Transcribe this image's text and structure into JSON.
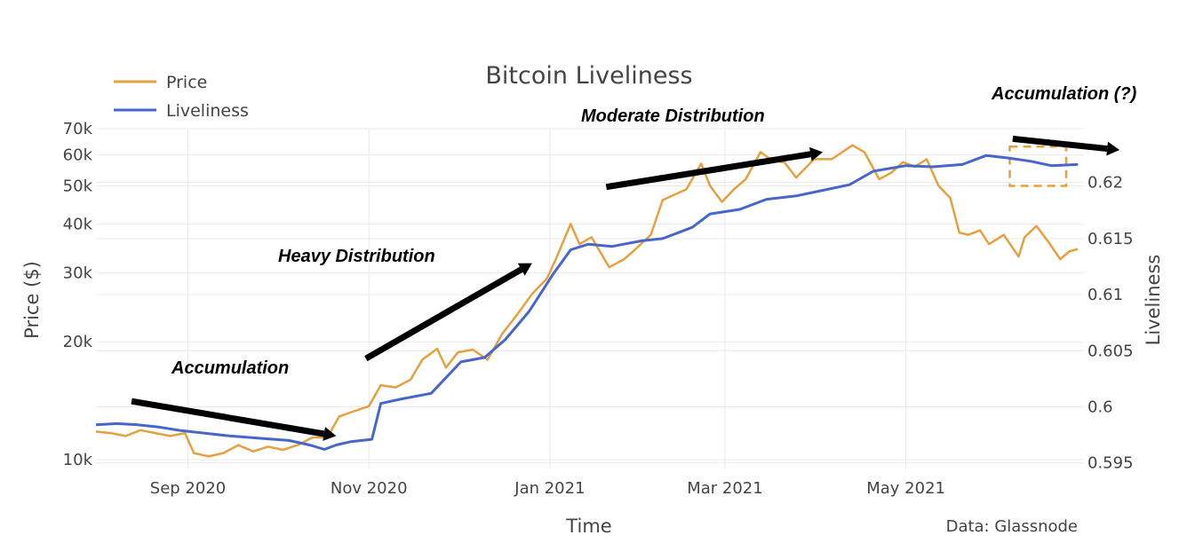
{
  "chart_data": {
    "type": "line",
    "title": "Bitcoin Liveliness",
    "xlabel": "Time",
    "ylabel_left": "Price ($)",
    "ylabel_right": "Liveliness",
    "source": "Data: Glassnode",
    "legend_position": "top-left",
    "x_ticks": [
      "Sep 2020",
      "Nov 2020",
      "Jan 2021",
      "Mar 2021",
      "May 2021"
    ],
    "y_left_ticks": [
      "10k",
      "20k",
      "30k",
      "40k",
      "50k",
      "60k",
      "70k"
    ],
    "y_left_scale": "log",
    "y_left_range": [
      9500,
      70000
    ],
    "y_right_ticks": [
      "0.595",
      "0.6",
      "0.605",
      "0.61",
      "0.615",
      "0.62"
    ],
    "y_right_range": [
      0.5945,
      0.6248
    ],
    "x_range": [
      "2020-08-01",
      "2021-06-30"
    ],
    "grid": true,
    "colors": {
      "Price": "#e5a13f",
      "Liveliness": "#4766c9",
      "box": "#e5a13f",
      "arrows": "#000000"
    },
    "series": [
      {
        "name": "Price",
        "axis": "left",
        "points": [
          [
            "2020-08-01",
            11800
          ],
          [
            "2020-08-06",
            11700
          ],
          [
            "2020-08-11",
            11500
          ],
          [
            "2020-08-16",
            11900
          ],
          [
            "2020-08-21",
            11700
          ],
          [
            "2020-08-26",
            11500
          ],
          [
            "2020-08-31",
            11700
          ],
          [
            "2020-09-03",
            10400
          ],
          [
            "2020-09-08",
            10200
          ],
          [
            "2020-09-13",
            10400
          ],
          [
            "2020-09-18",
            10900
          ],
          [
            "2020-09-23",
            10500
          ],
          [
            "2020-09-28",
            10800
          ],
          [
            "2020-10-03",
            10600
          ],
          [
            "2020-10-08",
            10900
          ],
          [
            "2020-10-13",
            11400
          ],
          [
            "2020-10-18",
            11400
          ],
          [
            "2020-10-22",
            12900
          ],
          [
            "2020-10-27",
            13300
          ],
          [
            "2020-11-01",
            13700
          ],
          [
            "2020-11-05",
            15500
          ],
          [
            "2020-11-10",
            15300
          ],
          [
            "2020-11-15",
            16000
          ],
          [
            "2020-11-19",
            18000
          ],
          [
            "2020-11-24",
            19200
          ],
          [
            "2020-11-27",
            17200
          ],
          [
            "2020-12-01",
            18800
          ],
          [
            "2020-12-06",
            19100
          ],
          [
            "2020-12-11",
            18000
          ],
          [
            "2020-12-16",
            21000
          ],
          [
            "2020-12-21",
            23500
          ],
          [
            "2020-12-26",
            26500
          ],
          [
            "2020-12-31",
            29000
          ],
          [
            "2021-01-03",
            32500
          ],
          [
            "2021-01-08",
            40000
          ],
          [
            "2021-01-11",
            35500
          ],
          [
            "2021-01-15",
            37000
          ],
          [
            "2021-01-21",
            31000
          ],
          [
            "2021-01-26",
            32500
          ],
          [
            "2021-01-29",
            34000
          ],
          [
            "2021-02-04",
            37500
          ],
          [
            "2021-02-08",
            46000
          ],
          [
            "2021-02-12",
            47500
          ],
          [
            "2021-02-16",
            49000
          ],
          [
            "2021-02-21",
            57000
          ],
          [
            "2021-02-24",
            50000
          ],
          [
            "2021-02-28",
            45500
          ],
          [
            "2021-03-04",
            49000
          ],
          [
            "2021-03-08",
            52000
          ],
          [
            "2021-03-13",
            61000
          ],
          [
            "2021-03-17",
            58000
          ],
          [
            "2021-03-21",
            57500
          ],
          [
            "2021-03-25",
            52500
          ],
          [
            "2021-03-31",
            58500
          ],
          [
            "2021-04-06",
            58500
          ],
          [
            "2021-04-13",
            63500
          ],
          [
            "2021-04-17",
            61000
          ],
          [
            "2021-04-22",
            52000
          ],
          [
            "2021-04-26",
            54000
          ],
          [
            "2021-04-30",
            57500
          ],
          [
            "2021-05-04",
            56000
          ],
          [
            "2021-05-08",
            58500
          ],
          [
            "2021-05-12",
            50000
          ],
          [
            "2021-05-16",
            46500
          ],
          [
            "2021-05-19",
            38000
          ],
          [
            "2021-05-22",
            37500
          ],
          [
            "2021-05-26",
            38500
          ],
          [
            "2021-05-29",
            35500
          ],
          [
            "2021-06-03",
            37500
          ],
          [
            "2021-06-08",
            33000
          ],
          [
            "2021-06-10",
            37000
          ],
          [
            "2021-06-14",
            39500
          ],
          [
            "2021-06-18",
            36000
          ],
          [
            "2021-06-22",
            32500
          ],
          [
            "2021-06-25",
            34000
          ],
          [
            "2021-06-28",
            34500
          ]
        ]
      },
      {
        "name": "Liveliness",
        "axis": "right",
        "points": [
          [
            "2020-08-01",
            0.5984
          ],
          [
            "2020-08-08",
            0.5985
          ],
          [
            "2020-08-15",
            0.5984
          ],
          [
            "2020-08-22",
            0.5982
          ],
          [
            "2020-08-29",
            0.5979
          ],
          [
            "2020-09-05",
            0.5977
          ],
          [
            "2020-09-15",
            0.5974
          ],
          [
            "2020-09-25",
            0.5972
          ],
          [
            "2020-10-05",
            0.597
          ],
          [
            "2020-10-12",
            0.5966
          ],
          [
            "2020-10-17",
            0.5962
          ],
          [
            "2020-10-21",
            0.5966
          ],
          [
            "2020-10-26",
            0.5969
          ],
          [
            "2020-11-02",
            0.5971
          ],
          [
            "2020-11-05",
            0.6003
          ],
          [
            "2020-11-12",
            0.6007
          ],
          [
            "2020-11-22",
            0.6012
          ],
          [
            "2020-12-02",
            0.604
          ],
          [
            "2020-12-10",
            0.6044
          ],
          [
            "2020-12-17",
            0.606
          ],
          [
            "2020-12-25",
            0.6085
          ],
          [
            "2021-01-02",
            0.6118
          ],
          [
            "2021-01-08",
            0.614
          ],
          [
            "2021-01-14",
            0.6145
          ],
          [
            "2021-01-22",
            0.6143
          ],
          [
            "2021-02-01",
            0.6148
          ],
          [
            "2021-02-08",
            0.615
          ],
          [
            "2021-02-18",
            0.616
          ],
          [
            "2021-02-24",
            0.6172
          ],
          [
            "2021-03-06",
            0.6176
          ],
          [
            "2021-03-15",
            0.6185
          ],
          [
            "2021-03-25",
            0.6188
          ],
          [
            "2021-04-03",
            0.6193
          ],
          [
            "2021-04-12",
            0.6198
          ],
          [
            "2021-04-20",
            0.621
          ],
          [
            "2021-05-01",
            0.6215
          ],
          [
            "2021-05-10",
            0.6214
          ],
          [
            "2021-05-20",
            0.6216
          ],
          [
            "2021-05-28",
            0.6224
          ],
          [
            "2021-06-04",
            0.6222
          ],
          [
            "2021-06-12",
            0.6219
          ],
          [
            "2021-06-19",
            0.6215
          ],
          [
            "2021-06-28",
            0.6216
          ]
        ]
      }
    ],
    "annotations": [
      {
        "text": "Accumulation",
        "arrow": {
          "from": [
            "2020-08-13",
            0.6005
          ],
          "to": [
            "2020-10-21",
            0.5974
          ]
        }
      },
      {
        "text": "Heavy Distribution",
        "arrow": {
          "from": [
            "2020-10-31",
            0.6043
          ],
          "to": [
            "2020-12-26",
            0.6128
          ]
        }
      },
      {
        "text": "Moderate Distribution",
        "arrow": {
          "from": [
            "2021-01-20",
            0.6196
          ],
          "to": [
            "2021-04-03",
            0.6227
          ]
        }
      },
      {
        "text": "Accumulation (?)",
        "arrow": {
          "from": [
            "2021-06-06",
            0.6239
          ],
          "to": [
            "2021-07-12",
            0.6229
          ]
        }
      }
    ],
    "highlight_box": {
      "x": [
        "2021-06-05",
        "2021-06-24"
      ],
      "y": [
        0.6197,
        0.6232
      ]
    }
  }
}
